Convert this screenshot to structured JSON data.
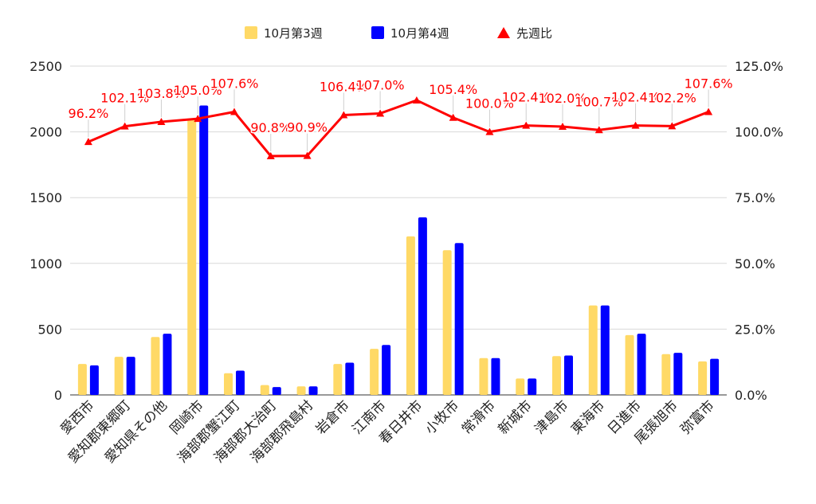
{
  "chart_data": {
    "type": "bar",
    "categories": [
      "愛西市",
      "愛知郡東郷町",
      "愛知県その他",
      "岡崎市",
      "海部郡蟹江町",
      "海部郡大治町",
      "海部郡飛島村",
      "岩倉市",
      "江南市",
      "春日井市",
      "小牧市",
      "常滑市",
      "新城市",
      "津島市",
      "東海市",
      "日進市",
      "尾張旭市",
      "弥富市"
    ],
    "series": [
      {
        "name": "10月第3週",
        "color": "#ffd966",
        "axis": "left",
        "values": [
          235,
          290,
          440,
          2095,
          165,
          75,
          65,
          235,
          350,
          1205,
          1100,
          280,
          125,
          295,
          680,
          455,
          310,
          255
        ]
      },
      {
        "name": "10月第4週",
        "color": "#0000ff",
        "axis": "left",
        "values": [
          225,
          290,
          465,
          2200,
          185,
          60,
          65,
          245,
          380,
          1350,
          1155,
          280,
          125,
          300,
          680,
          465,
          320,
          275
        ]
      },
      {
        "name": "先週比",
        "color": "#ff0000",
        "axis": "right",
        "type": "line",
        "marker": "triangle",
        "values": [
          96.2,
          102.1,
          103.8,
          105.0,
          107.6,
          90.8,
          90.9,
          106.4,
          107.0,
          112.0,
          105.4,
          100.0,
          102.4,
          102.0,
          100.7,
          102.4,
          102.2,
          107.6
        ],
        "labels": [
          "96.2%",
          "102.1%",
          "103.8%",
          "105.0%",
          "107.6%",
          "90.8%",
          "90.9%",
          "106.4%",
          "107.0%",
          "",
          "105.4%",
          "100.0%",
          "102.4%",
          "102.0%",
          "100.7%",
          "102.4%",
          "102.2%",
          "107.6%"
        ]
      }
    ],
    "y_left": {
      "min": 0,
      "max": 2500,
      "ticks": [
        "0",
        "500",
        "1000",
        "1500",
        "2000",
        "2500"
      ]
    },
    "y_right": {
      "min": 0,
      "max": 125,
      "ticks": [
        "0.0%",
        "25.0%",
        "50.0%",
        "75.0%",
        "100.0%",
        "125.0%"
      ]
    },
    "grid": true,
    "legend_position": "top"
  }
}
